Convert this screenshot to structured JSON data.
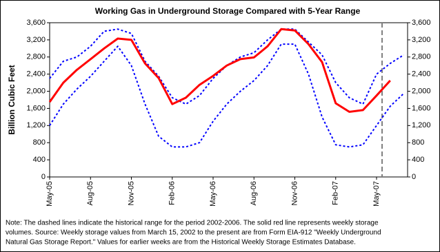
{
  "chart_data": {
    "type": "line",
    "title": "Working Gas in Underground Storage Compared with 5-Year Range",
    "ylabel": "Billion Cubic Feet",
    "categories": [
      "May-05",
      null,
      null,
      "Aug-05",
      null,
      null,
      "Nov-05",
      null,
      null,
      "Feb-06",
      null,
      null,
      "May-06",
      null,
      null,
      "Aug-06",
      null,
      null,
      "Nov-06",
      null,
      null,
      "Feb-07",
      null,
      null,
      "May-07",
      null,
      null
    ],
    "series": [
      {
        "color": "#0000ff",
        "dash": "dashed",
        "width": 2,
        "values": [
          2300,
          2700,
          2800,
          3050,
          3400,
          3450,
          3350,
          2700,
          2350,
          1850,
          1700,
          1900,
          2300,
          2600,
          2800,
          2900,
          3200,
          3450,
          3450,
          3150,
          2850,
          2200,
          1850,
          1700,
          2400,
          2650,
          2850
        ]
      },
      {
        "color": "#0000ff",
        "dash": "dashed",
        "width": 2,
        "values": [
          1200,
          1700,
          2050,
          2350,
          2700,
          3050,
          2600,
          1700,
          950,
          700,
          700,
          800,
          1300,
          1700,
          2000,
          2250,
          2600,
          3100,
          3100,
          2400,
          1400,
          750,
          700,
          750,
          1200,
          1650,
          1950
        ]
      },
      {
        "color": "#ff0000",
        "dash": "solid",
        "width": 3,
        "values": [
          1750,
          2200,
          2500,
          2750,
          3000,
          3230,
          3200,
          2650,
          2310,
          1700,
          1850,
          2150,
          2360,
          2600,
          2750,
          2790,
          3050,
          3450,
          3420,
          3100,
          2680,
          1720,
          1520,
          1560,
          1900,
          2250,
          null
        ]
      }
    ],
    "ylim": [
      0,
      3600
    ],
    "yticks": [
      0,
      400,
      800,
      {
        "value": 1200,
        "label": "1,200"
      },
      {
        "value": 1600,
        "label": "1,600"
      },
      {
        "value": 2000,
        "label": "2,000"
      },
      {
        "value": 2400,
        "label": "2,400"
      },
      {
        "value": 2800,
        "label": "2,800"
      },
      {
        "value": 3200,
        "label": "3,200"
      },
      {
        "value": 3600,
        "label": "3,600"
      }
    ],
    "y2lim": [
      0,
      3600
    ],
    "y2ticks": [
      0,
      400,
      800,
      {
        "value": 1200,
        "label": "1,200"
      },
      {
        "value": 1600,
        "label": "1,600"
      },
      {
        "value": 2000,
        "label": "2,000"
      },
      {
        "value": 2400,
        "label": "2,400"
      },
      {
        "value": 2800,
        "label": "2,800"
      },
      {
        "value": 3200,
        "label": "3,200"
      },
      {
        "value": 3600,
        "label": "3,600"
      }
    ],
    "grid": false,
    "note_lines": [
      "Note:   The dashed lines indicate the historical range for the period 2002-2006.  The solid red line represents weekly storage",
      "volumes.  Source:  Weekly storage values from March 15, 2002 to the present are from Form EIA-912 \"Weekly Underground",
      "Natural Gas Storage Report.\"  Values for earlier weeks are from the Historical Weekly Storage Estimates Database."
    ]
  }
}
